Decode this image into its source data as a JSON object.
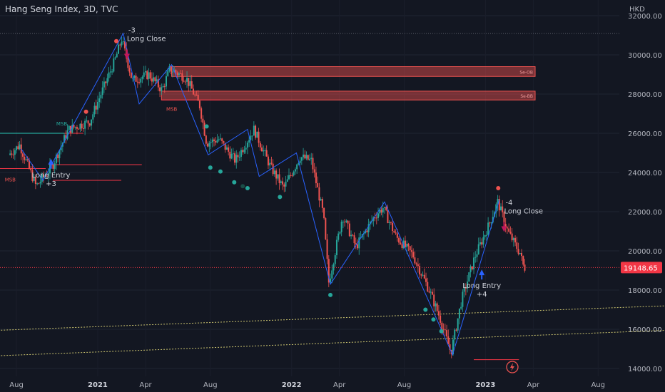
{
  "header": {
    "title": "Hang Seng Index, 3D, TVC"
  },
  "colors": {
    "background": "#131722",
    "text": "#b2b5be",
    "up": "#26a69a",
    "down": "#ef5350",
    "zigzag": "#2962ff",
    "price_line": "#f23645",
    "trendline": "#c9c26e"
  },
  "chart_data": {
    "type": "candlestick",
    "currency": "HKD",
    "y_ticks": [
      14000,
      16000,
      18000,
      20000,
      22000,
      24000,
      26000,
      28000,
      30000,
      32000
    ],
    "y_tick_labels": [
      "14000.00",
      "16000.00",
      "18000.00",
      "20000.00",
      "22000.00",
      "24000.00",
      "26000.00",
      "28000.00",
      "30000.00",
      "32000.00"
    ],
    "ylim": [
      13600,
      32800
    ],
    "x_ticks": [
      {
        "label": "Aug",
        "date": "2020-08"
      },
      {
        "label": "2021",
        "date": "2021-01"
      },
      {
        "label": "Apr",
        "date": "2021-04"
      },
      {
        "label": "Aug",
        "date": "2021-08"
      },
      {
        "label": "2022",
        "date": "2022-01"
      },
      {
        "label": "Apr",
        "date": "2022-04"
      },
      {
        "label": "Aug",
        "date": "2022-08"
      },
      {
        "label": "2023",
        "date": "2023-01"
      },
      {
        "label": "Apr",
        "date": "2023-04"
      },
      {
        "label": "Aug",
        "date": "2023-08"
      }
    ],
    "last_price": 19148.65,
    "last_price_label": "19148.65",
    "path": [
      [
        "2020-07-20",
        24900
      ],
      [
        "2020-08-10",
        25400
      ],
      [
        "2020-09-10",
        23300
      ],
      [
        "2020-10-10",
        24300
      ],
      [
        "2020-11-10",
        26200
      ],
      [
        "2020-12-20",
        26600
      ],
      [
        "2021-01-10",
        28000
      ],
      [
        "2021-02-05",
        29700
      ],
      [
        "2021-02-18",
        30800
      ],
      [
        "2021-03-10",
        28700
      ],
      [
        "2021-04-10",
        29000
      ],
      [
        "2021-05-05",
        28200
      ],
      [
        "2021-05-20",
        29300
      ],
      [
        "2021-06-20",
        28800
      ],
      [
        "2021-07-15",
        27400
      ],
      [
        "2021-07-28",
        25500
      ],
      [
        "2021-08-20",
        25700
      ],
      [
        "2021-09-20",
        24600
      ],
      [
        "2021-10-25",
        26200
      ],
      [
        "2021-11-25",
        24300
      ],
      [
        "2021-12-20",
        23200
      ],
      [
        "2022-01-20",
        24800
      ],
      [
        "2022-02-10",
        24600
      ],
      [
        "2022-03-05",
        21800
      ],
      [
        "2022-03-15",
        18400
      ],
      [
        "2022-04-10",
        21800
      ],
      [
        "2022-05-05",
        20200
      ],
      [
        "2022-06-10",
        21800
      ],
      [
        "2022-06-25",
        22200
      ],
      [
        "2022-07-20",
        20700
      ],
      [
        "2022-08-20",
        19800
      ],
      [
        "2022-09-20",
        18000
      ],
      [
        "2022-10-10",
        16600
      ],
      [
        "2022-10-31",
        14800
      ],
      [
        "2022-11-20",
        17500
      ],
      [
        "2022-12-15",
        19700
      ],
      [
        "2023-01-10",
        21300
      ],
      [
        "2023-01-27",
        22500
      ],
      [
        "2023-02-15",
        21000
      ],
      [
        "2023-03-01",
        20300
      ],
      [
        "2023-03-10",
        19900
      ],
      [
        "2023-03-17",
        19149
      ]
    ],
    "zigzag": [
      [
        "2020-08-10",
        25200
      ],
      [
        "2020-09-20",
        23600
      ],
      [
        "2021-02-18",
        31100
      ],
      [
        "2021-03-20",
        27500
      ],
      [
        "2021-05-20",
        29500
      ],
      [
        "2021-07-28",
        24900
      ],
      [
        "2021-10-10",
        26200
      ],
      [
        "2021-11-01",
        23800
      ],
      [
        "2022-01-10",
        25000
      ],
      [
        "2022-03-15",
        18300
      ],
      [
        "2022-06-25",
        22500
      ],
      [
        "2022-10-31",
        14700
      ],
      [
        "2023-01-27",
        22600
      ]
    ],
    "zones": [
      {
        "label": "Se-OB",
        "start": "2021-05-20",
        "y0": 28900,
        "y1": 29400
      },
      {
        "label": "Se-BB",
        "start": "2021-05-01",
        "y0": 27700,
        "y1": 28150
      }
    ],
    "h_lines": [
      {
        "start": "2020-06-01",
        "end": "2020-09-25",
        "y": 24200
      },
      {
        "start": "2020-06-01",
        "end": "2020-12-05",
        "y": 26000
      },
      {
        "start": "2020-10-01",
        "end": "2021-03-25",
        "y": 24400
      },
      {
        "start": "2021-05-01",
        "end": "2021-08-20",
        "y": 27700
      },
      {
        "start": "2022-12-10",
        "end": "2023-03-05",
        "y": 14450
      }
    ],
    "trendlines": [
      {
        "x1": "2020-05-10",
        "y1": 15900,
        "x2": "2023-12-10",
        "y2": 17200
      },
      {
        "x1": "2020-05-10",
        "y1": 14600,
        "x2": "2023-12-10",
        "y2": 15950
      }
    ],
    "signals": [
      {
        "text": "Long Entry",
        "sub": "+3",
        "date": "2020-10-05",
        "y": 24700,
        "dir": "up"
      },
      {
        "text": "Long Close",
        "sub": "-3",
        "date": "2021-02-25",
        "y": 31000,
        "dir": "down"
      },
      {
        "text": "Long Entry",
        "sub": "+4",
        "date": "2022-12-25",
        "y": 19050,
        "dir": "up"
      },
      {
        "text": "Long Close",
        "sub": "-4",
        "date": "2023-02-05",
        "y": 22200,
        "dir": "down"
      }
    ],
    "msb_labels": [
      {
        "text": "MSB",
        "date": "2020-07-10",
        "y": 23550,
        "color": "#ef5350"
      },
      {
        "text": "MSB",
        "date": "2020-10-15",
        "y": 26400,
        "color": "#26a69a"
      },
      {
        "text": "MSB",
        "date": "2021-05-10",
        "y": 27150,
        "color": "#ef5350"
      }
    ],
    "dots": [
      {
        "date": "2021-07-25",
        "y": 26350,
        "color": "#26a69a"
      },
      {
        "date": "2021-08-01",
        "y": 24250,
        "color": "#26a69a"
      },
      {
        "date": "2021-08-20",
        "y": 24050,
        "color": "#26a69a"
      },
      {
        "date": "2021-09-15",
        "y": 23500,
        "color": "#26a69a"
      },
      {
        "date": "2021-10-01",
        "y": 23300,
        "color": "#1a4d47"
      },
      {
        "date": "2021-10-10",
        "y": 23200,
        "color": "#26a69a"
      },
      {
        "date": "2021-12-10",
        "y": 22750,
        "color": "#26a69a"
      },
      {
        "date": "2022-03-15",
        "y": 17750,
        "color": "#26a69a"
      },
      {
        "date": "2022-09-10",
        "y": 17000,
        "color": "#26a69a"
      },
      {
        "date": "2022-09-25",
        "y": 16500,
        "color": "#26a69a"
      },
      {
        "date": "2022-10-10",
        "y": 15900,
        "color": "#26a69a"
      },
      {
        "date": "2020-12-10",
        "y": 27100,
        "color": "#ef5350"
      },
      {
        "date": "2021-02-05",
        "y": 30700,
        "color": "#ef5350"
      },
      {
        "date": "2023-01-25",
        "y": 23200,
        "color": "#ef5350"
      }
    ]
  }
}
